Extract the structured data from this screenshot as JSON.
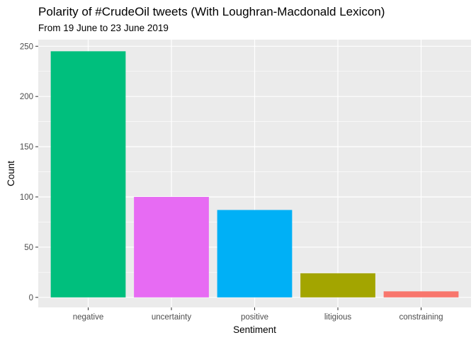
{
  "chart_data": {
    "type": "bar",
    "title": "Polarity of #CrudeOil tweets (With Loughran-Macdonald Lexicon)",
    "subtitle": "From 19 June to 23 June 2019",
    "xlabel": "Sentiment",
    "ylabel": "Count",
    "categories": [
      "negative",
      "uncertainty",
      "positive",
      "litigious",
      "constraining"
    ],
    "values": [
      245,
      100,
      87,
      24,
      6
    ],
    "colors": [
      "#00BF7D",
      "#E76BF3",
      "#00B0F6",
      "#A3A500",
      "#F8766D"
    ],
    "ylim": [
      -10,
      256.55
    ],
    "yticks": [
      0,
      50,
      100,
      150,
      200,
      250
    ],
    "grid": true,
    "panel_background": "#EBEBEB",
    "grid_color": "#FFFFFF"
  }
}
